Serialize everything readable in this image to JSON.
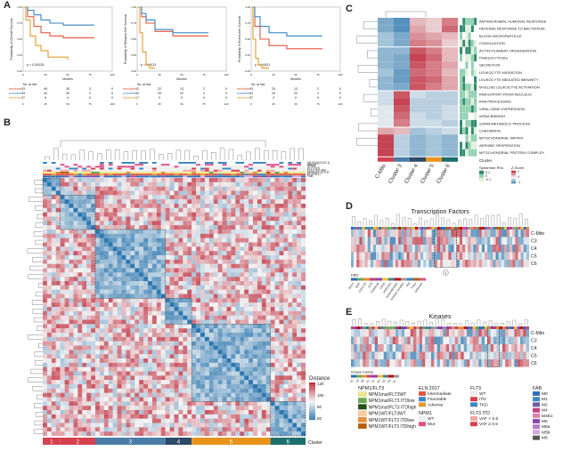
{
  "panels": {
    "a": "A",
    "b": "B",
    "c": "C",
    "d": "D",
    "e": "E"
  },
  "km": [
    {
      "ylabel": "Probability of Overall Survival",
      "xlabel": "Months",
      "pvalue": "p = 0.00025",
      "ticks_x": [
        "0",
        "25",
        "50",
        "75",
        "100"
      ],
      "ticks_y": [
        "0.00",
        "0.25",
        "0.50",
        "0.75",
        "1.00"
      ],
      "risk": {
        "header": "No. at risk",
        "rows": [
          {
            "name": "Intermediate",
            "color": "#e2563a",
            "values": [
              "93",
              "49",
              "30",
              "3",
              "0"
            ]
          },
          {
            "name": "Favorable",
            "color": "#3a86c4",
            "values": [
              "63",
              "42",
              "30",
              "1",
              "0"
            ]
          },
          {
            "name": "Adverse",
            "color": "#e49a2b",
            "values": [
              "37",
              "8",
              "4",
              "0",
              "0"
            ]
          }
        ]
      }
    },
    {
      "ylabel": "Probability of Relapse-free Survival",
      "xlabel": "Months",
      "pvalue": "p = 0.0013",
      "ticks_x": [
        "0",
        "25",
        "50",
        "75",
        "100"
      ],
      "ticks_y": [
        "0.00",
        "0.25",
        "0.50",
        "0.75",
        "1.00"
      ],
      "risk": {
        "header": "No. at risk",
        "rows": [
          {
            "name": "Intermediate",
            "color": "#e2563a",
            "values": [
              "42",
              "22",
              "13",
              "2",
              "0"
            ]
          },
          {
            "name": "Favorable",
            "color": "#3a86c4",
            "values": [
              "50",
              "29",
              "22",
              "1",
              "0"
            ]
          },
          {
            "name": "Adverse",
            "color": "#e49a2b",
            "values": [
              "17",
              "2",
              "0",
              "0",
              "0"
            ]
          }
        ]
      }
    },
    {
      "ylabel": "Probability of Event-free Survival",
      "xlabel": "Months",
      "pvalue": "p < 0.0001",
      "ticks_x": [
        "0",
        "25",
        "50",
        "75",
        "100"
      ],
      "ticks_y": [
        "0.00",
        "0.25",
        "0.50",
        "0.75",
        "1.00"
      ],
      "risk": {
        "header": "No. at risk",
        "rows": [
          {
            "name": "Intermediate",
            "color": "#e2563a",
            "values": [
              "93",
              "25",
              "13",
              "2",
              "0"
            ]
          },
          {
            "name": "Favorable",
            "color": "#3a86c4",
            "values": [
              "63",
              "29",
              "22",
              "1",
              "0"
            ]
          },
          {
            "name": "Adverse",
            "color": "#e49a2b",
            "values": [
              "37",
              "2",
              "0",
              "0",
              "0"
            ]
          }
        ]
      }
    }
  ],
  "heatmap_b": {
    "annotation_labels": [
      "t(8;21)/t(22;22.1)",
      "inv(16)",
      "NPM1",
      "FLT3 ITD",
      "FLT3 ITD VAF",
      "NPM1/FLT3 ITD",
      "ELN 2017",
      "FAB"
    ],
    "clusters": [
      "1",
      "2",
      "3",
      "4",
      "5",
      "6"
    ],
    "cluster_colors": [
      "#d6404e",
      "#d6404e",
      "#4a7ea8",
      "#2d4a66",
      "#e8931c",
      "#1f6e6e"
    ],
    "cluster_label": "Cluster",
    "legend_title": "Distance",
    "legend_ticks": [
      "120",
      "100",
      "80",
      "60"
    ]
  },
  "heatmap_c": {
    "terms": [
      "ANTIMICROBIAL HUMORAL RESPONSE",
      "DEFENSE RESPONSE TO BACTERIUM",
      "BLOOD MICROPARTICLE",
      "COAGULATION",
      "ACTIN FILAMENT ORGANIZATION",
      "PHAGOCYTOSIS",
      "SECRETION",
      "LEUKOCYTE MIGRATION",
      "LEUKOCYTE MEDIATED IMMUNITY",
      "MYELOID LEUKOCYTE ACTIVATION",
      "RNA EXPORT FROM NUCLEUS",
      "RNA PROCESSING",
      "VIRAL GENE EXPRESSION",
      "mRNA BINDING",
      "ncRNA METABOLIC PROCESS",
      "CHROMATIN",
      "MITOCHONDRIAL MATRIX",
      "AEROBIC RESPIRATION",
      "MITOCHONDRIAL PROTEIN COMPLEX"
    ],
    "columns": [
      "C-Mito",
      "Cluster 3",
      "Cluster 4",
      "Cluster 5",
      "Cluster 6"
    ],
    "column_colors": [
      "#d6404e",
      "#4a7ea8",
      "#2d4a66",
      "#e8931c",
      "#1f6e6e"
    ],
    "cluster_label": "Cluster",
    "legend_rho_title": "Spearman Rho",
    "legend_rho_ticks": [
      "0.1",
      "0",
      "-0.1"
    ],
    "legend_z_title": "Z-Score",
    "legend_z_ticks": [
      "1",
      "0",
      "-1"
    ]
  },
  "heatmap_d": {
    "title": "Transcription Factors",
    "rows": [
      "C-Mito",
      "C3",
      "C4",
      "C5",
      "C6"
    ],
    "legend_title": "DBD",
    "legend_items": [
      "bHLH",
      "bZIP",
      "C2H2 ZF",
      "ETS",
      "Forkhead",
      "GATA",
      "HMG/Sox",
      "Homeodomain",
      "Nuclear receptor",
      "Rel",
      "T-box",
      "Unknown"
    ],
    "marker": "1"
  },
  "heatmap_e": {
    "title": "Kinases",
    "rows": [
      "C-Mito",
      "C3",
      "C4",
      "C5",
      "C6"
    ],
    "legend_title": "Kinase Family",
    "legend_items": [
      "AGC",
      "Atypical",
      "CAMK",
      "CK1",
      "CMGC",
      "Other",
      "STE",
      "TK",
      "TKL"
    ]
  },
  "bottom_legend": {
    "npm1flt3": {
      "title": "NPM1/FLT3",
      "items": [
        {
          "label": "NPM1mut/FLT3WT",
          "color": "#f0e68c"
        },
        {
          "label": "NPM1mut/FLT3 ITDlow",
          "color": "#6aa84f"
        },
        {
          "label": "NPM1mut/FLT3 ITDhigh",
          "color": "#274e13"
        },
        {
          "label": "NPM1WT/FLT3WT",
          "color": "#f9cb9c"
        },
        {
          "label": "NPM1WT/FLT3 ITDlow",
          "color": "#e69138"
        },
        {
          "label": "NPM1WT/FLT3 ITDhigh",
          "color": "#b45f06"
        }
      ]
    },
    "eln": {
      "title": "ELN 2017",
      "items": [
        {
          "label": "Intermediate",
          "color": "#e2563a"
        },
        {
          "label": "Favorable",
          "color": "#3a86c4"
        },
        {
          "label": "Adverse",
          "color": "#e49a2b"
        }
      ]
    },
    "npm1": {
      "title": "NPM1",
      "items": [
        {
          "label": "WT",
          "color": "#eeeeee"
        },
        {
          "label": "Mut",
          "color": "#e0508a"
        }
      ]
    },
    "flt3": {
      "title": "FLT3",
      "items": [
        {
          "label": "WT",
          "color": "#eeeeee"
        },
        {
          "label": "ITD",
          "color": "#d6404e"
        },
        {
          "label": "TKD",
          "color": "#3a86c4"
        }
      ]
    },
    "flt3itd": {
      "title": "FLT3 ITD",
      "items": [
        {
          "label": "VAF < 0.5",
          "color": "#f4a6a6"
        },
        {
          "label": "VAF ≥ 0.5",
          "color": "#d6404e"
        }
      ]
    },
    "fab": {
      "title": "FAB",
      "items": [
        {
          "label": "M0",
          "color": "#2f6bb5"
        },
        {
          "label": "M1",
          "color": "#3a86c4"
        },
        {
          "label": "M2",
          "color": "#6a5aa8"
        },
        {
          "label": "M4",
          "color": "#c2407e"
        },
        {
          "label": "M4Eo",
          "color": "#e67ea8"
        },
        {
          "label": "M5",
          "color": "#8e44ad"
        },
        {
          "label": "M5a",
          "color": "#b07cc6"
        },
        {
          "label": "M5b",
          "color": "#d4a6e0"
        },
        {
          "label": "M6",
          "color": "#555555"
        }
      ]
    }
  },
  "colors": {
    "red": "#c03040",
    "blue": "#2e78b0",
    "white": "#f5f5f5"
  }
}
